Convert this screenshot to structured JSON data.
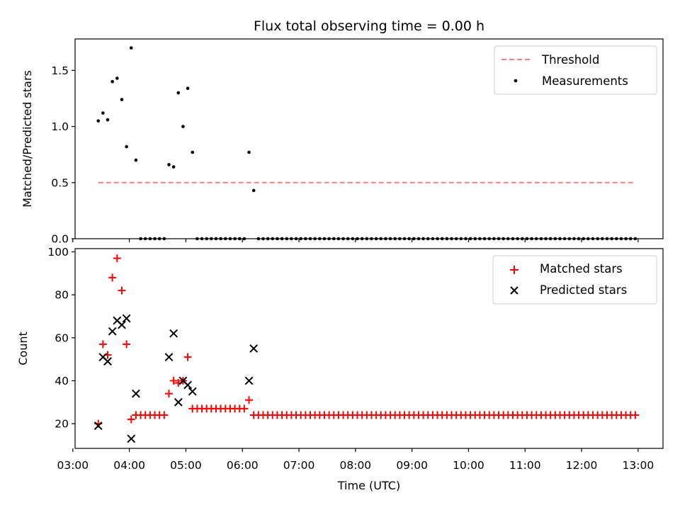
{
  "chart_data": [
    {
      "type": "scatter",
      "title": "Flux total observing time = 0.00 h",
      "xlabel": "",
      "ylabel": "Matched/Predicted stars",
      "ylim": [
        0,
        1.78
      ],
      "xlim_hours": [
        3.04,
        13.44
      ],
      "ytick_labels": [
        "0.0",
        "0.5",
        "1.0",
        "1.5"
      ],
      "ytick_values": [
        0,
        0.5,
        1.0,
        1.5
      ],
      "legend_position": "top-right",
      "legend": [
        {
          "key": "threshold",
          "label": "Threshold"
        },
        {
          "key": "measurements",
          "label": "Measurements"
        }
      ],
      "threshold": {
        "value": 0.5,
        "x_start": "03:27",
        "x_end": "12:57",
        "color": "#ff7f7f"
      },
      "measurements": {
        "color": "#000000",
        "x": [
          "03:27",
          "03:32",
          "03:37",
          "03:42",
          "03:47",
          "03:52",
          "03:57",
          "04:02",
          "04:07",
          "04:12",
          "04:17",
          "04:22",
          "04:27",
          "04:32",
          "04:37",
          "04:42",
          "04:47",
          "04:52",
          "04:57",
          "05:02",
          "05:07",
          "05:12",
          "05:17",
          "05:22",
          "05:27",
          "05:32",
          "05:37",
          "05:42",
          "05:47",
          "05:52",
          "05:57",
          "06:02",
          "06:07",
          "06:12",
          "06:17",
          "06:22",
          "06:27",
          "06:32",
          "06:37",
          "06:42",
          "06:47",
          "06:52",
          "06:57",
          "07:02",
          "07:07",
          "07:12",
          "07:17",
          "07:22",
          "07:27",
          "07:32",
          "07:37",
          "07:42",
          "07:47",
          "07:52",
          "07:57",
          "08:02",
          "08:07",
          "08:12",
          "08:17",
          "08:22",
          "08:27",
          "08:32",
          "08:37",
          "08:42",
          "08:47",
          "08:52",
          "08:57",
          "09:02",
          "09:07",
          "09:12",
          "09:17",
          "09:22",
          "09:27",
          "09:32",
          "09:37",
          "09:42",
          "09:47",
          "09:52",
          "09:57",
          "10:02",
          "10:07",
          "10:12",
          "10:17",
          "10:22",
          "10:27",
          "10:32",
          "10:37",
          "10:42",
          "10:47",
          "10:52",
          "10:57",
          "11:02",
          "11:07",
          "11:12",
          "11:17",
          "11:22",
          "11:27",
          "11:32",
          "11:37",
          "11:42",
          "11:47",
          "11:52",
          "11:57",
          "12:02",
          "12:07",
          "12:12",
          "12:17",
          "12:22",
          "12:27",
          "12:32",
          "12:37",
          "12:42",
          "12:47",
          "12:52",
          "12:57"
        ],
        "y": [
          1.05,
          1.12,
          1.06,
          1.4,
          1.43,
          1.24,
          0.82,
          1.7,
          0.7,
          0,
          0,
          0,
          0,
          0,
          0,
          0.66,
          0.64,
          1.3,
          1.0,
          1.34,
          0.77,
          0,
          0,
          0,
          0,
          0,
          0,
          0,
          0,
          0,
          0,
          0,
          0.77,
          0.43,
          0,
          0,
          0,
          0,
          0,
          0,
          0,
          0,
          0,
          0,
          0,
          0,
          0,
          0,
          0,
          0,
          0,
          0,
          0,
          0,
          0,
          0,
          0,
          0,
          0,
          0,
          0,
          0,
          0,
          0,
          0,
          0,
          0,
          0,
          0,
          0,
          0,
          0,
          0,
          0,
          0,
          0,
          0,
          0,
          0,
          0,
          0,
          0,
          0,
          0,
          0,
          0,
          0,
          0,
          0,
          0,
          0,
          0,
          0,
          0,
          0,
          0,
          0,
          0,
          0,
          0,
          0,
          0,
          0,
          0,
          0,
          0,
          0,
          0,
          0,
          0,
          0,
          0,
          0,
          0,
          0
        ]
      }
    },
    {
      "type": "scatter",
      "title": "",
      "xlabel": "Time (UTC)",
      "ylabel": "Count",
      "ylim": [
        8.5,
        101.5
      ],
      "xlim_hours": [
        3.04,
        13.44
      ],
      "ytick_labels": [
        "20",
        "40",
        "60",
        "80",
        "100"
      ],
      "ytick_values": [
        20,
        40,
        60,
        80,
        100
      ],
      "xtick_labels": [
        "03:00",
        "04:00",
        "05:00",
        "06:00",
        "07:00",
        "08:00",
        "09:00",
        "10:00",
        "11:00",
        "12:00",
        "13:00"
      ],
      "xtick_values": [
        3,
        4,
        5,
        6,
        7,
        8,
        9,
        10,
        11,
        12,
        13
      ],
      "legend_position": "top-right",
      "legend": [
        {
          "key": "matched",
          "label": "Matched stars"
        },
        {
          "key": "predicted",
          "label": "Predicted stars"
        }
      ],
      "matched": {
        "color": "#ff0000",
        "marker": "+",
        "x": [
          "03:27",
          "03:32",
          "03:37",
          "03:42",
          "03:47",
          "03:52",
          "03:57",
          "04:02",
          "04:07",
          "04:12",
          "04:17",
          "04:22",
          "04:27",
          "04:32",
          "04:37",
          "04:42",
          "04:47",
          "04:52",
          "04:57",
          "05:02",
          "05:07",
          "05:12",
          "05:17",
          "05:22",
          "05:27",
          "05:32",
          "05:37",
          "05:42",
          "05:47",
          "05:52",
          "05:57",
          "06:02",
          "06:07",
          "06:12",
          "06:17",
          "06:22",
          "06:27",
          "06:32",
          "06:37",
          "06:42",
          "06:47",
          "06:52",
          "06:57",
          "07:02",
          "07:07",
          "07:12",
          "07:17",
          "07:22",
          "07:27",
          "07:32",
          "07:37",
          "07:42",
          "07:47",
          "07:52",
          "07:57",
          "08:02",
          "08:07",
          "08:12",
          "08:17",
          "08:22",
          "08:27",
          "08:32",
          "08:37",
          "08:42",
          "08:47",
          "08:52",
          "08:57",
          "09:02",
          "09:07",
          "09:12",
          "09:17",
          "09:22",
          "09:27",
          "09:32",
          "09:37",
          "09:42",
          "09:47",
          "09:52",
          "09:57",
          "10:02",
          "10:07",
          "10:12",
          "10:17",
          "10:22",
          "10:27",
          "10:32",
          "10:37",
          "10:42",
          "10:47",
          "10:52",
          "10:57",
          "11:02",
          "11:07",
          "11:12",
          "11:17",
          "11:22",
          "11:27",
          "11:32",
          "11:37",
          "11:42",
          "11:47",
          "11:52",
          "11:57",
          "12:02",
          "12:07",
          "12:12",
          "12:17",
          "12:22",
          "12:27",
          "12:32",
          "12:37",
          "12:42",
          "12:47",
          "12:52",
          "12:57"
        ],
        "y": [
          20,
          57,
          52,
          88,
          97,
          82,
          57,
          22,
          24,
          24,
          24,
          24,
          24,
          24,
          24,
          34,
          40,
          39,
          40,
          51,
          27,
          27,
          27,
          27,
          27,
          27,
          27,
          27,
          27,
          27,
          27,
          27,
          31,
          24,
          24,
          24,
          24,
          24,
          24,
          24,
          24,
          24,
          24,
          24,
          24,
          24,
          24,
          24,
          24,
          24,
          24,
          24,
          24,
          24,
          24,
          24,
          24,
          24,
          24,
          24,
          24,
          24,
          24,
          24,
          24,
          24,
          24,
          24,
          24,
          24,
          24,
          24,
          24,
          24,
          24,
          24,
          24,
          24,
          24,
          24,
          24,
          24,
          24,
          24,
          24,
          24,
          24,
          24,
          24,
          24,
          24,
          24,
          24,
          24,
          24,
          24,
          24,
          24,
          24,
          24,
          24,
          24,
          24,
          24,
          24,
          24,
          24,
          24,
          24,
          24,
          24,
          24,
          24,
          24,
          24
        ]
      },
      "predicted": {
        "color": "#000000",
        "marker": "x",
        "x": [
          "03:27",
          "03:32",
          "03:37",
          "03:42",
          "03:47",
          "03:52",
          "03:57",
          "04:02",
          "04:07",
          "04:42",
          "04:47",
          "04:52",
          "04:57",
          "05:02",
          "05:07",
          "06:07",
          "06:12"
        ],
        "y": [
          19,
          51,
          49,
          63,
          68,
          66,
          69,
          13,
          34,
          51,
          62,
          30,
          40,
          38,
          35,
          40,
          55
        ]
      }
    }
  ]
}
